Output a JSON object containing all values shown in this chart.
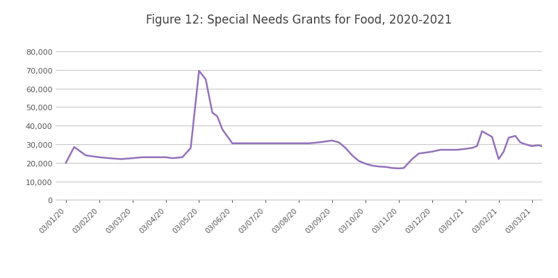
{
  "title": "Figure 12: Special Needs Grants for Food, 2020-2021",
  "x_labels": [
    "03/01/20",
    "03/02/20",
    "03/03/20",
    "03/04/20",
    "03/05/20",
    "03/06/20",
    "03/07/20",
    "03/08/20",
    "03/09/20",
    "03/10/20",
    "03/11/20",
    "03/12/20",
    "03/01/21",
    "03/02/21",
    "03/03/21"
  ],
  "raw_data": [
    [
      0.0,
      20000
    ],
    [
      0.25,
      28500
    ],
    [
      0.6,
      24000
    ],
    [
      1.0,
      23000
    ],
    [
      1.3,
      22500
    ],
    [
      1.65,
      22000
    ],
    [
      2.0,
      22500
    ],
    [
      2.3,
      23000
    ],
    [
      2.65,
      23000
    ],
    [
      3.0,
      23000
    ],
    [
      3.2,
      22500
    ],
    [
      3.5,
      23000
    ],
    [
      3.75,
      28000
    ],
    [
      4.0,
      69500
    ],
    [
      4.2,
      65000
    ],
    [
      4.4,
      47000
    ],
    [
      4.55,
      45000
    ],
    [
      4.7,
      38000
    ],
    [
      5.0,
      30500
    ],
    [
      5.2,
      30500
    ],
    [
      5.5,
      30500
    ],
    [
      5.8,
      30500
    ],
    [
      6.0,
      30500
    ],
    [
      6.3,
      30500
    ],
    [
      6.6,
      30500
    ],
    [
      7.0,
      30500
    ],
    [
      7.3,
      30500
    ],
    [
      7.6,
      31000
    ],
    [
      8.0,
      32000
    ],
    [
      8.2,
      31000
    ],
    [
      8.4,
      28000
    ],
    [
      8.6,
      24000
    ],
    [
      8.8,
      21000
    ],
    [
      9.0,
      19500
    ],
    [
      9.2,
      18500
    ],
    [
      9.4,
      18000
    ],
    [
      9.6,
      17800
    ],
    [
      9.8,
      17200
    ],
    [
      10.0,
      17000
    ],
    [
      10.15,
      17200
    ],
    [
      10.4,
      22000
    ],
    [
      10.6,
      25000
    ],
    [
      11.0,
      26000
    ],
    [
      11.25,
      27000
    ],
    [
      11.5,
      27000
    ],
    [
      11.75,
      27000
    ],
    [
      12.0,
      27500
    ],
    [
      12.2,
      28000
    ],
    [
      12.35,
      29000
    ],
    [
      12.5,
      37000
    ],
    [
      12.65,
      35500
    ],
    [
      12.8,
      34000
    ],
    [
      13.0,
      22000
    ],
    [
      13.15,
      26000
    ],
    [
      13.3,
      33500
    ],
    [
      13.5,
      34500
    ],
    [
      13.65,
      31000
    ],
    [
      13.8,
      30000
    ],
    [
      14.0,
      29000
    ],
    [
      14.2,
      29500
    ],
    [
      14.45,
      28000
    ],
    [
      14.65,
      28500
    ],
    [
      14.85,
      28800
    ],
    [
      15.0,
      29500
    ]
  ],
  "line_color": "#9370BB",
  "ylim": [
    0,
    90000
  ],
  "yticks": [
    0,
    10000,
    20000,
    30000,
    40000,
    50000,
    60000,
    70000,
    80000
  ],
  "background_color": "#ffffff",
  "grid_color": "#c8c8c8",
  "title_fontsize": 12,
  "title_color": "#404040"
}
